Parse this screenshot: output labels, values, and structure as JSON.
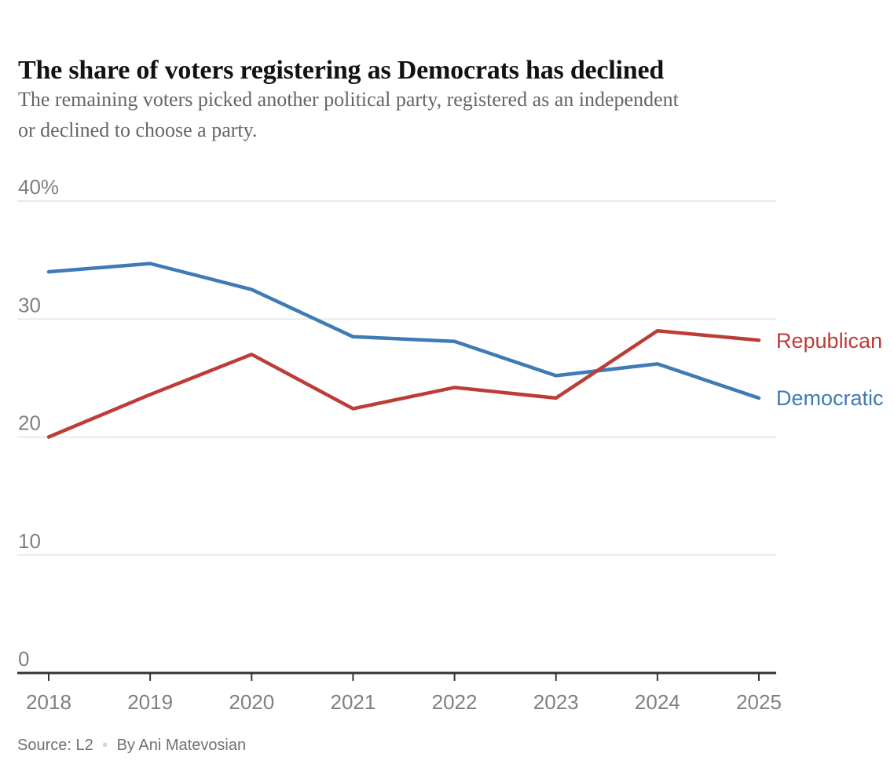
{
  "page": {
    "title": "The share of voters registering as Democrats has declined",
    "subtitle_line1": "The remaining voters picked another political party, registered as an independent",
    "subtitle_line2": "or declined to choose a party.",
    "source_label": "Source: L2",
    "source_separator": "●",
    "byline": "By Ani Matevosian"
  },
  "colors": {
    "democratic": "#3d7ab6",
    "republican": "#bc3d38",
    "title_text": "#121212",
    "subtitle_text": "#666666",
    "axis_label": "#808080",
    "gridline": "#e4e4e4",
    "axis_line": "#333333",
    "source_text": "#727272",
    "separator_dot": "#d5d5d5"
  },
  "chart_data": {
    "type": "line",
    "title": "The share of voters registering as Democrats has declined",
    "subtitle": "The remaining voters picked another political party, registered as an independent or declined to choose a party.",
    "x": [
      2018,
      2019,
      2020,
      2021,
      2022,
      2023,
      2024,
      2025
    ],
    "x_tick_labels": [
      "2018",
      "2019",
      "2020",
      "2021",
      "2022",
      "2023",
      "2024",
      "2025"
    ],
    "series": [
      {
        "name": "Democratic",
        "color_key": "democratic",
        "values": [
          34.0,
          34.7,
          32.5,
          28.5,
          28.1,
          25.2,
          26.2,
          23.3
        ]
      },
      {
        "name": "Republican",
        "color_key": "republican",
        "values": [
          20.0,
          23.6,
          27.0,
          22.4,
          24.2,
          23.3,
          29.0,
          28.2
        ]
      }
    ],
    "y_ticks": [
      {
        "value": 40,
        "label": "40%"
      },
      {
        "value": 30,
        "label": "30"
      },
      {
        "value": 20,
        "label": "20"
      },
      {
        "value": 10,
        "label": "10"
      },
      {
        "value": 0,
        "label": "0"
      }
    ],
    "ylim": [
      0,
      40
    ],
    "unit": "%",
    "grid": true,
    "legend_position": "right-of-line-ends",
    "source": "Source: L2",
    "byline": "By Ani Matevosian"
  }
}
